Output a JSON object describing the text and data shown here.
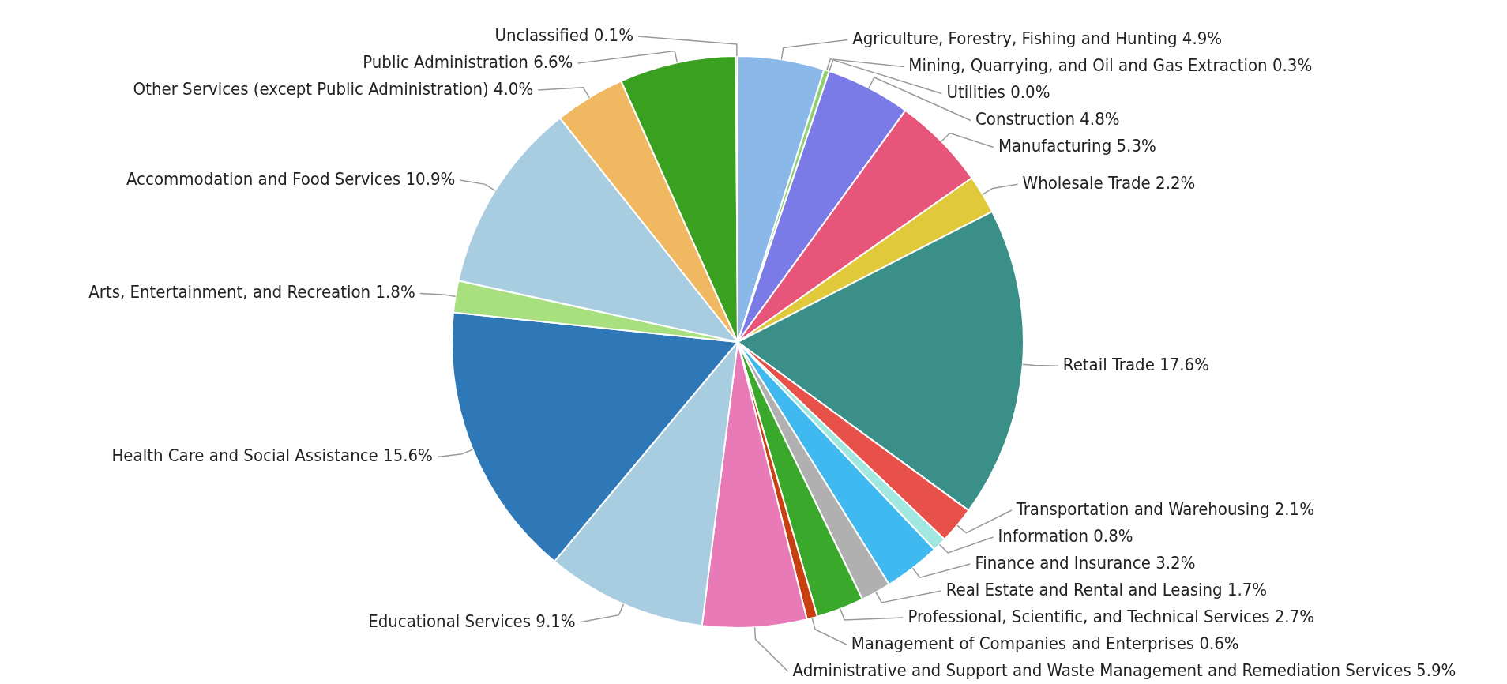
{
  "chart_data": {
    "type": "pie",
    "categories": [
      "Agriculture, Forestry, Fishing and Hunting",
      "Mining, Quarrying, and Oil and Gas Extraction",
      "Utilities",
      "Construction",
      "Manufacturing",
      "Wholesale Trade",
      "Retail Trade",
      "Transportation and Warehousing",
      "Information",
      "Finance and Insurance",
      "Real Estate and Rental and Leasing",
      "Professional, Scientific, and Technical Services",
      "Management of Companies and Enterprises",
      "Administrative and Support and Waste Management and Remediation Services",
      "Educational Services",
      "Health Care and Social Assistance",
      "Arts, Entertainment, and Recreation",
      "Accommodation and Food Services",
      "Other Services (except Public Administration)",
      "Public Administration",
      "Unclassified"
    ],
    "values": [
      4.9,
      0.3,
      0.0,
      4.8,
      5.3,
      2.2,
      17.6,
      2.1,
      0.8,
      3.2,
      1.7,
      2.7,
      0.6,
      5.9,
      9.1,
      15.6,
      1.8,
      10.9,
      4.0,
      6.6,
      0.1
    ],
    "value_labels": [
      "4.9%",
      "0.3%",
      "0.0%",
      "4.8%",
      "5.3%",
      "2.2%",
      "17.6%",
      "2.1%",
      "0.8%",
      "3.2%",
      "1.7%",
      "2.7%",
      "0.6%",
      "5.9%",
      "9.1%",
      "15.6%",
      "1.8%",
      "10.9%",
      "4.0%",
      "6.6%",
      "0.1%"
    ],
    "colors": [
      "#8ab8e8",
      "#8fd070",
      "#f08c3c",
      "#7b7be8",
      "#e8557a",
      "#e0c93a",
      "#3a9089",
      "#e8504a",
      "#a0e8e0",
      "#40b8f0",
      "#b0b0b0",
      "#3aa82a",
      "#c84010",
      "#e87ab8",
      "#a8cce0",
      "#2f78b8",
      "#a8e080",
      "#a8cce0",
      "#f0b860",
      "#3aa020",
      "#888888"
    ],
    "legend": false
  }
}
